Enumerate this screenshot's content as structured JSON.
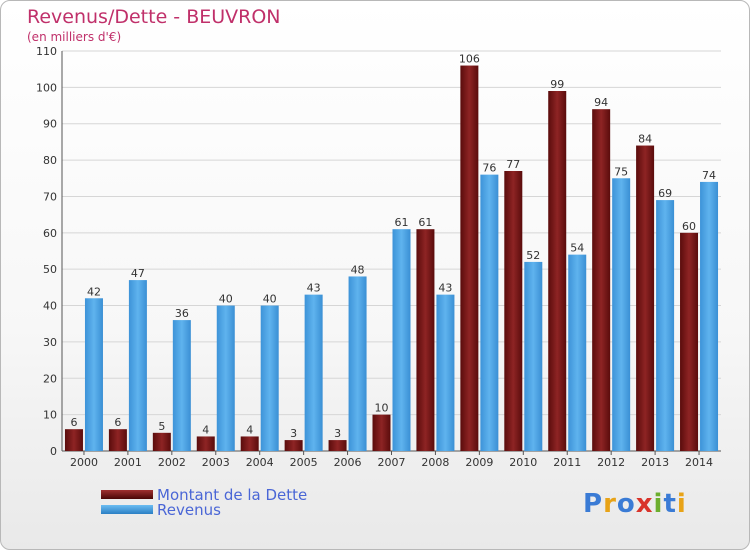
{
  "chart_data": {
    "type": "bar",
    "title": "Revenus/Dette - BEUVRON",
    "subtitle": "(en milliers d'€)",
    "categories": [
      "2000",
      "2001",
      "2002",
      "2003",
      "2004",
      "2005",
      "2006",
      "2007",
      "2008",
      "2009",
      "2010",
      "2011",
      "2012",
      "2013",
      "2014"
    ],
    "series": [
      {
        "name": "Montant de la Dette",
        "color": "#7a1717",
        "values": [
          6,
          6,
          5,
          4,
          4,
          3,
          3,
          10,
          61,
          106,
          77,
          99,
          94,
          84,
          60
        ]
      },
      {
        "name": "Revenus",
        "color": "#4aa3e6",
        "values": [
          42,
          47,
          36,
          40,
          40,
          43,
          48,
          61,
          43,
          76,
          52,
          54,
          75,
          69,
          74
        ]
      }
    ],
    "ylim": [
      0,
      110
    ],
    "yticks": [
      0,
      10,
      20,
      30,
      40,
      50,
      60,
      70,
      80,
      90,
      100,
      110
    ],
    "grid": true,
    "legend_position": "bottom-left"
  },
  "logo": {
    "text": "Proxiti"
  }
}
